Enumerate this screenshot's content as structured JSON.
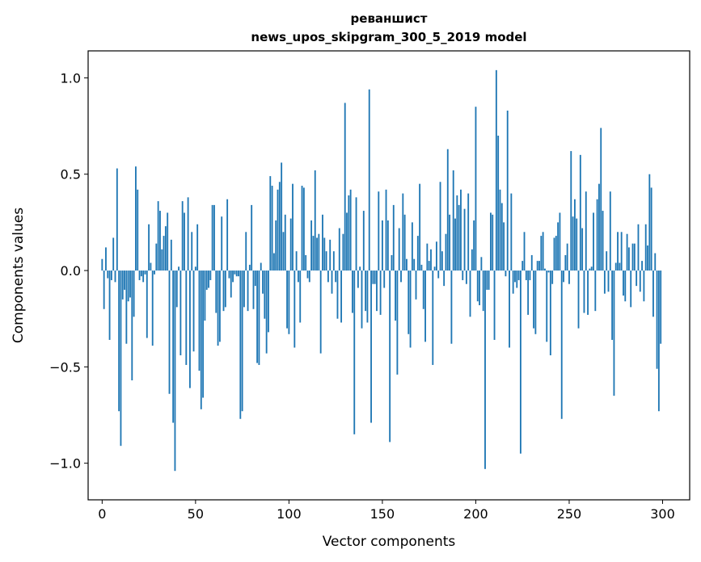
{
  "chart_data": {
    "type": "bar",
    "title": "реваншист",
    "subtitle": "news_upos_skipgram_300_5_2019 model",
    "xlabel": "Vector components",
    "ylabel": "Components values",
    "xlim": [
      -7.5,
      314.5
    ],
    "ylim": [
      -1.19,
      1.14
    ],
    "xticks": [
      {
        "value": 0,
        "label": "0"
      },
      {
        "value": 50,
        "label": "50"
      },
      {
        "value": 100,
        "label": "100"
      },
      {
        "value": 150,
        "label": "150"
      },
      {
        "value": 200,
        "label": "200"
      },
      {
        "value": 250,
        "label": "250"
      },
      {
        "value": 300,
        "label": "300"
      }
    ],
    "yticks": [
      {
        "value": 1.0,
        "label": "1.0"
      },
      {
        "value": 0.5,
        "label": "0.5"
      },
      {
        "value": 0.0,
        "label": "0.0"
      },
      {
        "value": -0.5,
        "label": "−0.5"
      },
      {
        "value": -1.0,
        "label": "−1.0"
      }
    ],
    "bar_color": "#1f77b4",
    "grid": false,
    "values": [
      0.06,
      -0.2,
      0.12,
      -0.04,
      -0.36,
      -0.05,
      0.17,
      -0.06,
      0.53,
      -0.73,
      -0.91,
      -0.15,
      -0.1,
      -0.38,
      -0.16,
      -0.14,
      -0.57,
      -0.24,
      0.54,
      0.42,
      -0.05,
      -0.03,
      -0.06,
      -0.02,
      -0.35,
      0.24,
      0.04,
      -0.39,
      -0.02,
      0.14,
      0.36,
      0.31,
      0.11,
      0.18,
      0.23,
      0.3,
      -0.64,
      0.16,
      -0.79,
      -1.04,
      -0.19,
      0.02,
      -0.44,
      0.36,
      0.3,
      -0.49,
      0.38,
      -0.61,
      0.2,
      -0.42,
      0.02,
      0.24,
      -0.52,
      -0.72,
      -0.66,
      -0.26,
      -0.1,
      -0.09,
      -0.05,
      0.34,
      0.34,
      -0.22,
      -0.39,
      -0.37,
      0.28,
      -0.21,
      -0.19,
      0.37,
      -0.04,
      -0.14,
      -0.06,
      -0.02,
      -0.03,
      -0.03,
      -0.77,
      -0.73,
      -0.19,
      0.2,
      -0.21,
      0.03,
      0.34,
      -0.2,
      -0.08,
      -0.48,
      -0.49,
      0.04,
      -0.12,
      -0.25,
      -0.43,
      -0.32,
      0.49,
      0.44,
      0.09,
      0.26,
      0.42,
      0.46,
      0.56,
      0.2,
      0.29,
      -0.3,
      -0.33,
      0.27,
      0.45,
      -0.4,
      0.1,
      -0.06,
      -0.27,
      0.44,
      0.43,
      0.08,
      -0.04,
      -0.06,
      0.26,
      0.18,
      0.52,
      0.17,
      0.19,
      -0.43,
      0.29,
      0.17,
      0.1,
      -0.06,
      0.16,
      -0.12,
      0.1,
      -0.06,
      -0.25,
      0.22,
      -0.27,
      0.19,
      0.87,
      0.3,
      0.39,
      0.42,
      -0.22,
      -0.85,
      0.38,
      -0.09,
      0.02,
      -0.3,
      0.31,
      -0.21,
      -0.27,
      0.94,
      -0.79,
      -0.07,
      -0.07,
      -0.21,
      0.41,
      -0.23,
      0.26,
      -0.09,
      0.42,
      0.26,
      -0.89,
      0.08,
      0.34,
      -0.26,
      -0.54,
      0.22,
      -0.06,
      0.4,
      0.29,
      0.06,
      -0.33,
      -0.4,
      0.25,
      0.06,
      -0.15,
      0.18,
      0.45,
      0.03,
      -0.2,
      -0.37,
      0.14,
      0.05,
      0.11,
      -0.49,
      0.02,
      0.15,
      -0.04,
      0.46,
      0.1,
      -0.08,
      0.19,
      0.63,
      0.29,
      -0.38,
      0.52,
      0.27,
      0.39,
      0.34,
      0.42,
      -0.05,
      0.32,
      -0.07,
      0.4,
      -0.24,
      0.11,
      0.26,
      0.85,
      -0.16,
      -0.18,
      0.07,
      -0.21,
      -1.03,
      -0.1,
      -0.1,
      0.3,
      0.29,
      -0.36,
      1.04,
      0.7,
      0.42,
      0.35,
      0.25,
      -0.03,
      0.83,
      -0.4,
      0.4,
      -0.12,
      -0.06,
      -0.09,
      -0.05,
      -0.95,
      0.05,
      0.2,
      -0.05,
      -0.23,
      -0.05,
      0.08,
      -0.3,
      -0.33,
      0.05,
      0.05,
      0.18,
      0.2,
      0.01,
      -0.37,
      -0.01,
      -0.44,
      -0.07,
      0.17,
      0.18,
      0.25,
      0.3,
      -0.77,
      -0.06,
      0.08,
      0.14,
      -0.07,
      0.62,
      0.28,
      0.37,
      0.27,
      -0.3,
      0.6,
      0.22,
      -0.22,
      0.41,
      -0.23,
      0.01,
      0.02,
      0.3,
      -0.21,
      0.37,
      0.45,
      0.74,
      0.31,
      -0.12,
      0.1,
      -0.11,
      0.41,
      -0.36,
      -0.65,
      0.04,
      0.2,
      0.04,
      0.2,
      -0.13,
      -0.16,
      0.19,
      0.12,
      -0.19,
      0.14,
      0.14,
      -0.08,
      0.24,
      -0.11,
      0.05,
      -0.16,
      0.24,
      0.13,
      0.5,
      0.43,
      -0.24,
      0.09,
      -0.51,
      -0.73,
      -0.38
    ]
  }
}
